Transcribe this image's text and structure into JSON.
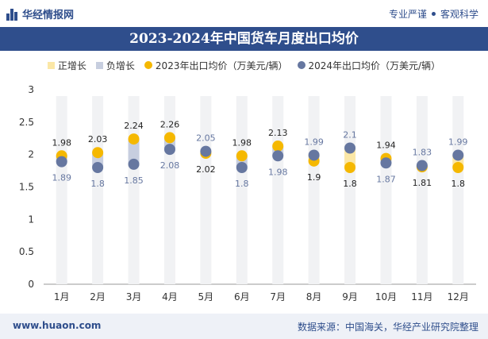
{
  "header": {
    "brand": "华经情报网",
    "tag1": "专业严谨",
    "tag2": "客观科学"
  },
  "title": "2023-2024年中国货车月度出口均价",
  "legend": {
    "pos": "正增长",
    "neg": "负增长",
    "s2023": "2023年出口均价（万美元/辆）",
    "s2024": "2024年出口均价（万美元/辆）"
  },
  "footer": {
    "left": "www.huaon.com",
    "right": "数据来源：中国海关，华经产业研究院整理"
  },
  "colors": {
    "brand": "#2f4e8c",
    "series2023": "#f5b800",
    "series2024": "#6677a0",
    "positive": "#fbe7a6",
    "negative": "#c7cedf"
  },
  "chart_data": {
    "type": "scatter",
    "categories": [
      "1月",
      "2月",
      "3月",
      "4月",
      "5月",
      "6月",
      "7月",
      "8月",
      "9月",
      "10月",
      "11月",
      "12月"
    ],
    "ylim": [
      0,
      3
    ],
    "yticks": [
      0,
      0.5,
      1,
      1.5,
      2,
      2.5,
      3
    ],
    "series": [
      {
        "name": "2023年出口均价（万美元/辆）",
        "values": [
          1.98,
          2.03,
          2.24,
          2.26,
          2.02,
          1.98,
          2.13,
          1.9,
          1.8,
          1.94,
          1.81,
          1.8
        ]
      },
      {
        "name": "2024年出口均价（万美元/辆）",
        "values": [
          1.89,
          1.8,
          1.85,
          2.08,
          2.05,
          1.8,
          1.98,
          1.99,
          2.1,
          1.87,
          1.83,
          1.99
        ]
      }
    ],
    "grid": false,
    "legend": "top"
  }
}
